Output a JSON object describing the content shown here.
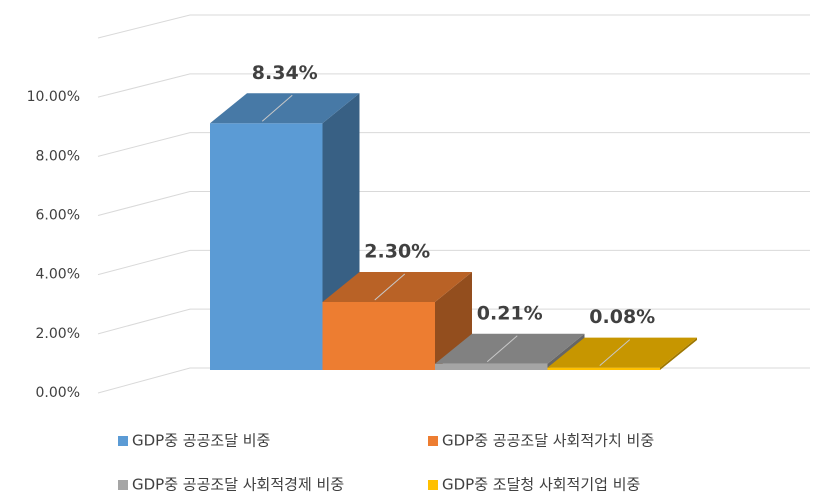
{
  "chart_data": {
    "type": "bar3d",
    "series": [
      {
        "name": "GDP중 공공조달 비중",
        "color": "#5b9bd5",
        "values": [
          8.34
        ],
        "value_labels": [
          "8.34%"
        ]
      },
      {
        "name": "GDP중 공공조달 사회적가치 비중",
        "color": "#ed7d31",
        "values": [
          2.3
        ],
        "value_labels": [
          "2.30%"
        ]
      },
      {
        "name": "GDP중 공공조달 사회적경제 비중",
        "color": "#a5a5a5",
        "values": [
          0.21
        ],
        "value_labels": [
          "0.21%"
        ]
      },
      {
        "name": "GDP중 조달청 사회적기업 비중",
        "color": "#ffc000",
        "values": [
          0.08
        ],
        "value_labels": [
          "0.08%"
        ]
      }
    ],
    "ylim": [
      0,
      12
    ],
    "yticks": [
      {
        "value": 0,
        "label": "0.00%"
      },
      {
        "value": 2,
        "label": "2.00%"
      },
      {
        "value": 4,
        "label": "4.00%"
      },
      {
        "value": 6,
        "label": "6.00%"
      },
      {
        "value": 8,
        "label": "8.00%"
      },
      {
        "value": 10,
        "label": "10.00%"
      }
    ],
    "grid": true
  }
}
